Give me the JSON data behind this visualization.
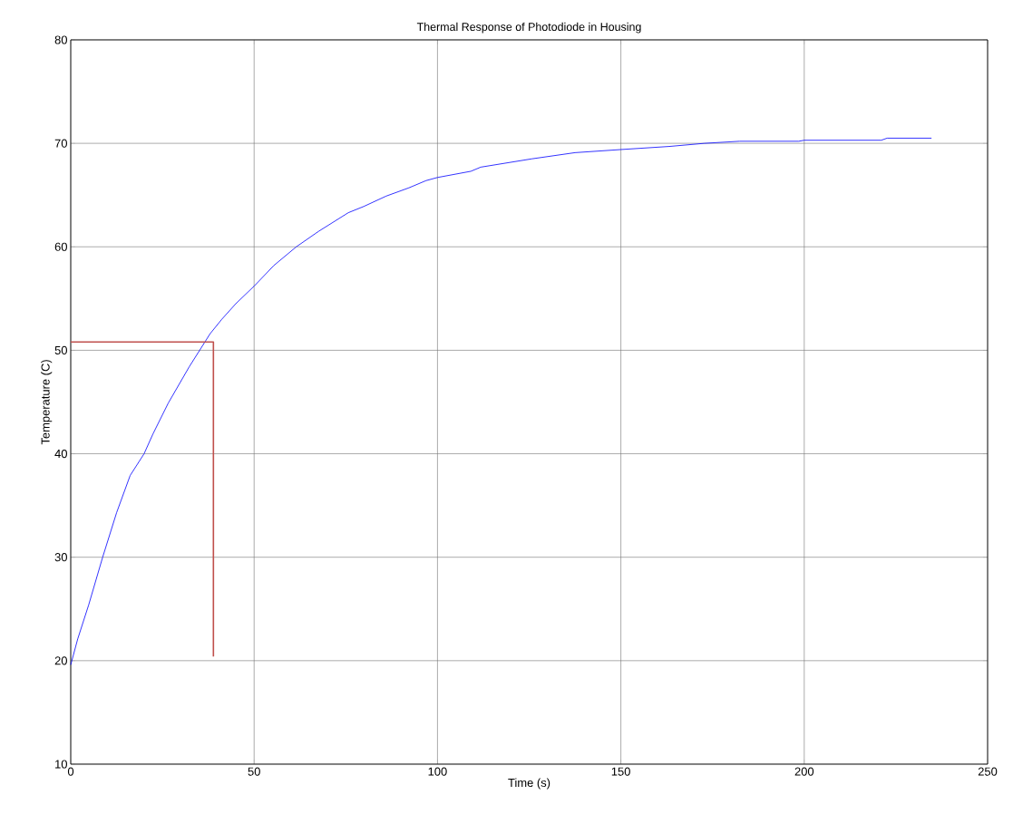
{
  "chart_data": {
    "type": "line",
    "title": "Thermal Response of Photodiode in Housing",
    "xlabel": "Time (s)",
    "ylabel": "Temperature (C)",
    "xlim": [
      0,
      250
    ],
    "ylim": [
      10,
      80
    ],
    "xticks": [
      0,
      50,
      100,
      150,
      200,
      250
    ],
    "yticks": [
      10,
      20,
      30,
      40,
      50,
      60,
      70,
      80
    ],
    "grid": true,
    "marker": "none",
    "line_style": "solid",
    "series": [
      {
        "color": "#0000ff",
        "x": [
          0,
          1.9,
          4.9,
          8.7,
          12.5,
          16.2,
          20.0,
          22.4,
          26.6,
          32.3,
          38,
          41.2,
          45,
          50,
          55.4,
          61.5,
          67.6,
          75.7,
          79.9,
          86.0,
          92.2,
          96.9,
          100,
          109.1,
          111.8,
          125.7,
          137.5,
          150,
          163.2,
          172.8,
          182.4,
          198.5,
          200,
          221,
          222.6,
          234.7
        ],
        "values": [
          19.6,
          22.1,
          25.4,
          30.0,
          34.3,
          37.9,
          40.0,
          41.9,
          44.9,
          48.4,
          51.6,
          53.0,
          54.5,
          56.2,
          58.2,
          60.0,
          61.5,
          63.3,
          63.9,
          64.9,
          65.7,
          66.4,
          66.7,
          67.3,
          67.7,
          68.5,
          69.1,
          69.4,
          69.7,
          70.0,
          70.2,
          70.2,
          70.3,
          70.3,
          70.5,
          70.5
        ]
      },
      {
        "color": "#c0504d",
        "x": [
          0,
          38.9,
          38.9
        ],
        "values": [
          50.8,
          50.8,
          20.4
        ]
      }
    ]
  }
}
